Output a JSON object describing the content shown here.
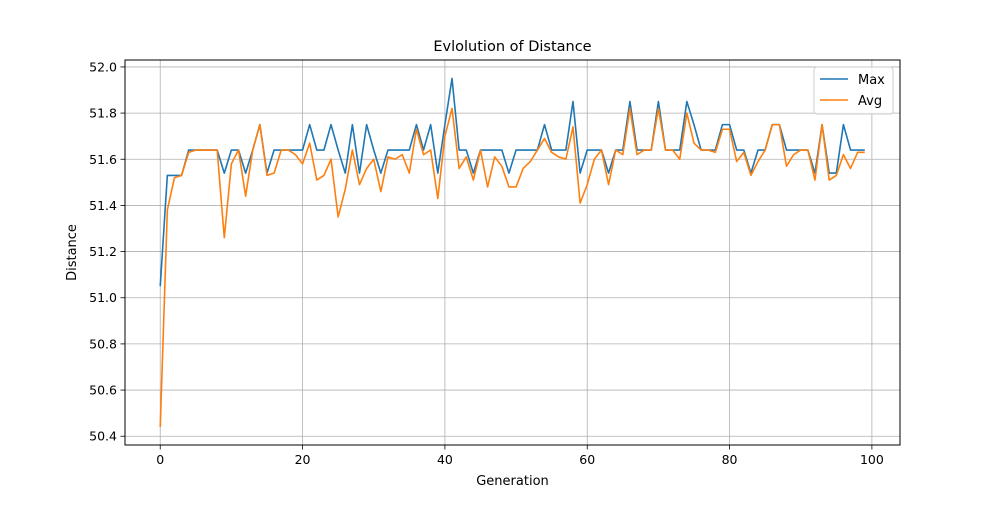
{
  "chart_data": {
    "type": "line",
    "title": "Evlolution of Distance",
    "xlabel": "Generation",
    "ylabel": "Distance",
    "xlim": [
      -4.95,
      103.95
    ],
    "ylim": [
      50.362,
      52.03
    ],
    "xticks": [
      0,
      20,
      40,
      60,
      80,
      100
    ],
    "yticks": [
      50.4,
      50.6,
      50.8,
      51.0,
      51.2,
      51.4,
      51.6,
      51.8,
      52.0
    ],
    "xtick_labels": [
      "0",
      "20",
      "40",
      "60",
      "80",
      "100"
    ],
    "ytick_labels": [
      "50.4",
      "50.6",
      "50.8",
      "51.0",
      "51.2",
      "51.4",
      "51.6",
      "51.8",
      "52.0"
    ],
    "grid": true,
    "legend_position": "top-right",
    "series": [
      {
        "name": "Max",
        "color": "#1f77b4",
        "values": [
          51.05,
          51.53,
          51.53,
          51.53,
          51.64,
          51.64,
          51.64,
          51.64,
          51.64,
          51.54,
          51.64,
          51.64,
          51.54,
          51.64,
          51.75,
          51.54,
          51.64,
          51.64,
          51.64,
          51.64,
          51.64,
          51.75,
          51.64,
          51.64,
          51.75,
          51.64,
          51.54,
          51.75,
          51.54,
          51.75,
          51.64,
          51.54,
          51.64,
          51.64,
          51.64,
          51.64,
          51.75,
          51.64,
          51.75,
          51.54,
          51.75,
          51.95,
          51.64,
          51.64,
          51.54,
          51.64,
          51.64,
          51.64,
          51.64,
          51.54,
          51.64,
          51.64,
          51.64,
          51.64,
          51.75,
          51.64,
          51.64,
          51.64,
          51.85,
          51.54,
          51.64,
          51.64,
          51.64,
          51.54,
          51.64,
          51.64,
          51.85,
          51.64,
          51.64,
          51.64,
          51.85,
          51.64,
          51.64,
          51.64,
          51.85,
          51.75,
          51.64,
          51.64,
          51.64,
          51.75,
          51.75,
          51.64,
          51.64,
          51.54,
          51.64,
          51.64,
          51.75,
          51.75,
          51.64,
          51.64,
          51.64,
          51.64,
          51.54,
          51.75,
          51.54,
          51.54,
          51.75,
          51.64,
          51.64,
          51.64
        ]
      },
      {
        "name": "Avg",
        "color": "#ff7f0e",
        "values": [
          50.44,
          51.38,
          51.52,
          51.53,
          51.63,
          51.64,
          51.64,
          51.64,
          51.64,
          51.26,
          51.58,
          51.64,
          51.44,
          51.64,
          51.75,
          51.53,
          51.54,
          51.64,
          51.64,
          51.62,
          51.58,
          51.67,
          51.51,
          51.53,
          51.6,
          51.35,
          51.47,
          51.64,
          51.49,
          51.56,
          51.6,
          51.46,
          51.61,
          51.6,
          51.62,
          51.54,
          51.73,
          51.62,
          51.64,
          51.43,
          51.7,
          51.82,
          51.56,
          51.61,
          51.51,
          51.64,
          51.48,
          51.61,
          51.57,
          51.48,
          51.48,
          51.56,
          51.59,
          51.64,
          51.69,
          51.63,
          51.61,
          51.6,
          51.74,
          51.41,
          51.49,
          51.6,
          51.64,
          51.49,
          51.64,
          51.62,
          51.82,
          51.62,
          51.64,
          51.64,
          51.82,
          51.64,
          51.64,
          51.6,
          51.8,
          51.67,
          51.64,
          51.64,
          51.63,
          51.73,
          51.73,
          51.59,
          51.63,
          51.53,
          51.59,
          51.64,
          51.75,
          51.75,
          51.57,
          51.62,
          51.64,
          51.64,
          51.51,
          51.75,
          51.51,
          51.53,
          51.62,
          51.56,
          51.63,
          51.63
        ]
      }
    ]
  }
}
